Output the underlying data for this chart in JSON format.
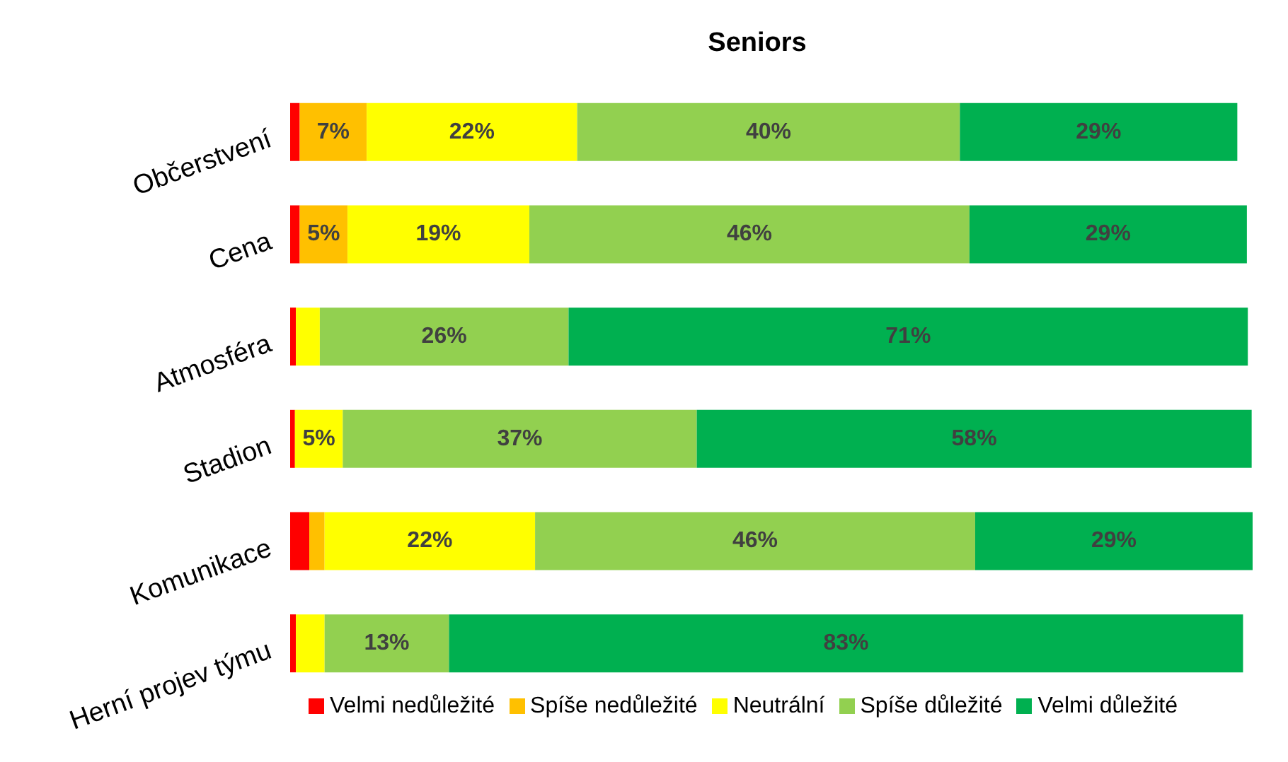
{
  "chart_data": {
    "type": "bar",
    "orientation": "horizontal",
    "stacked": true,
    "title": "Seniors",
    "categories": [
      "Občerstvení",
      "Cena",
      "Atmosféra",
      "Stadion",
      "Komunikace",
      "Herní projev týmu"
    ],
    "tick_labels": "y",
    "grid": false,
    "legend": "bottom",
    "series": [
      {
        "name": "Velmi nedůležité",
        "color": "#ff0000",
        "values": [
          1,
          1,
          0.6,
          0.5,
          2,
          0.6
        ],
        "value_labels": [
          null,
          null,
          null,
          null,
          null,
          null
        ]
      },
      {
        "name": "Spíše nedůležité",
        "color": "#ffc000",
        "values": [
          7,
          5,
          0,
          0,
          1.6,
          0
        ],
        "value_labels": [
          "7%",
          "5%",
          null,
          null,
          null,
          null
        ]
      },
      {
        "name": "Neutrální",
        "color": "#ffff00",
        "values": [
          22,
          19,
          2.5,
          5,
          22,
          3
        ],
        "value_labels": [
          "22%",
          "19%",
          null,
          "5%",
          "22%",
          null
        ]
      },
      {
        "name": "Spíše důležité",
        "color": "#92d050",
        "values": [
          40,
          46,
          26,
          37,
          46,
          13
        ],
        "value_labels": [
          "40%",
          "46%",
          "26%",
          "37%",
          "46%",
          "13%"
        ]
      },
      {
        "name": "Velmi důležité",
        "color": "#00b050",
        "values": [
          29,
          29,
          71,
          58,
          29,
          83
        ],
        "value_labels": [
          "29%",
          "29%",
          "71%",
          "58%",
          "29%",
          "83%"
        ]
      }
    ]
  }
}
